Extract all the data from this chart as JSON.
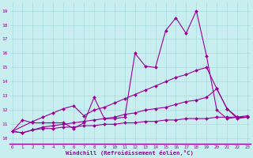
{
  "xlabel": "Windchill (Refroidissement éolien,°C)",
  "bg_color": "#c8eef0",
  "line_color": "#990099",
  "grid_color": "#a8dce0",
  "x_ticks": [
    0,
    1,
    2,
    3,
    4,
    5,
    6,
    7,
    8,
    9,
    10,
    11,
    12,
    13,
    14,
    15,
    16,
    17,
    18,
    19,
    20,
    21,
    22,
    23
  ],
  "y_ticks": [
    10,
    11,
    12,
    13,
    14,
    15,
    16,
    17,
    18,
    19
  ],
  "ylim": [
    9.6,
    19.6
  ],
  "xlim": [
    -0.3,
    23.3
  ],
  "series": [
    {
      "x": [
        0,
        1,
        2,
        3,
        4,
        5,
        6,
        7,
        8,
        9,
        10,
        11,
        12,
        13,
        14,
        15,
        16,
        17,
        18,
        19,
        20,
        21,
        22,
        23
      ],
      "y": [
        10.5,
        11.3,
        11.1,
        11.1,
        11.1,
        11.1,
        10.7,
        11.1,
        12.9,
        11.4,
        11.4,
        11.5,
        16.0,
        15.1,
        15.0,
        17.6,
        18.5,
        17.4,
        19.0,
        15.8,
        12.0,
        11.4,
        11.5,
        11.5
      ]
    },
    {
      "x": [
        0,
        2,
        3,
        4,
        5,
        6,
        7,
        8,
        9,
        10,
        11,
        12,
        13,
        14,
        15,
        16,
        17,
        18,
        19,
        20,
        21,
        22,
        23
      ],
      "y": [
        10.5,
        11.2,
        11.5,
        11.8,
        12.1,
        12.3,
        11.6,
        12.0,
        12.2,
        12.5,
        12.8,
        13.1,
        13.4,
        13.7,
        14.0,
        14.3,
        14.5,
        14.8,
        15.0,
        13.5,
        12.1,
        11.5,
        11.6
      ]
    },
    {
      "x": [
        0,
        1,
        2,
        3,
        4,
        5,
        6,
        7,
        8,
        9,
        10,
        11,
        12,
        13,
        14,
        15,
        16,
        17,
        18,
        19,
        20,
        21,
        22,
        23
      ],
      "y": [
        10.5,
        10.4,
        10.6,
        10.8,
        10.9,
        11.0,
        11.1,
        11.2,
        11.3,
        11.4,
        11.5,
        11.7,
        11.8,
        12.0,
        12.1,
        12.2,
        12.4,
        12.6,
        12.7,
        12.9,
        13.5,
        12.1,
        11.4,
        11.5
      ]
    },
    {
      "x": [
        0,
        1,
        2,
        3,
        4,
        5,
        6,
        7,
        8,
        9,
        10,
        11,
        12,
        13,
        14,
        15,
        16,
        17,
        18,
        19,
        20,
        21,
        22,
        23
      ],
      "y": [
        10.5,
        10.4,
        10.6,
        10.7,
        10.7,
        10.8,
        10.8,
        10.9,
        10.9,
        11.0,
        11.0,
        11.1,
        11.1,
        11.2,
        11.2,
        11.3,
        11.3,
        11.4,
        11.4,
        11.4,
        11.5,
        11.5,
        11.5,
        11.5
      ]
    }
  ]
}
